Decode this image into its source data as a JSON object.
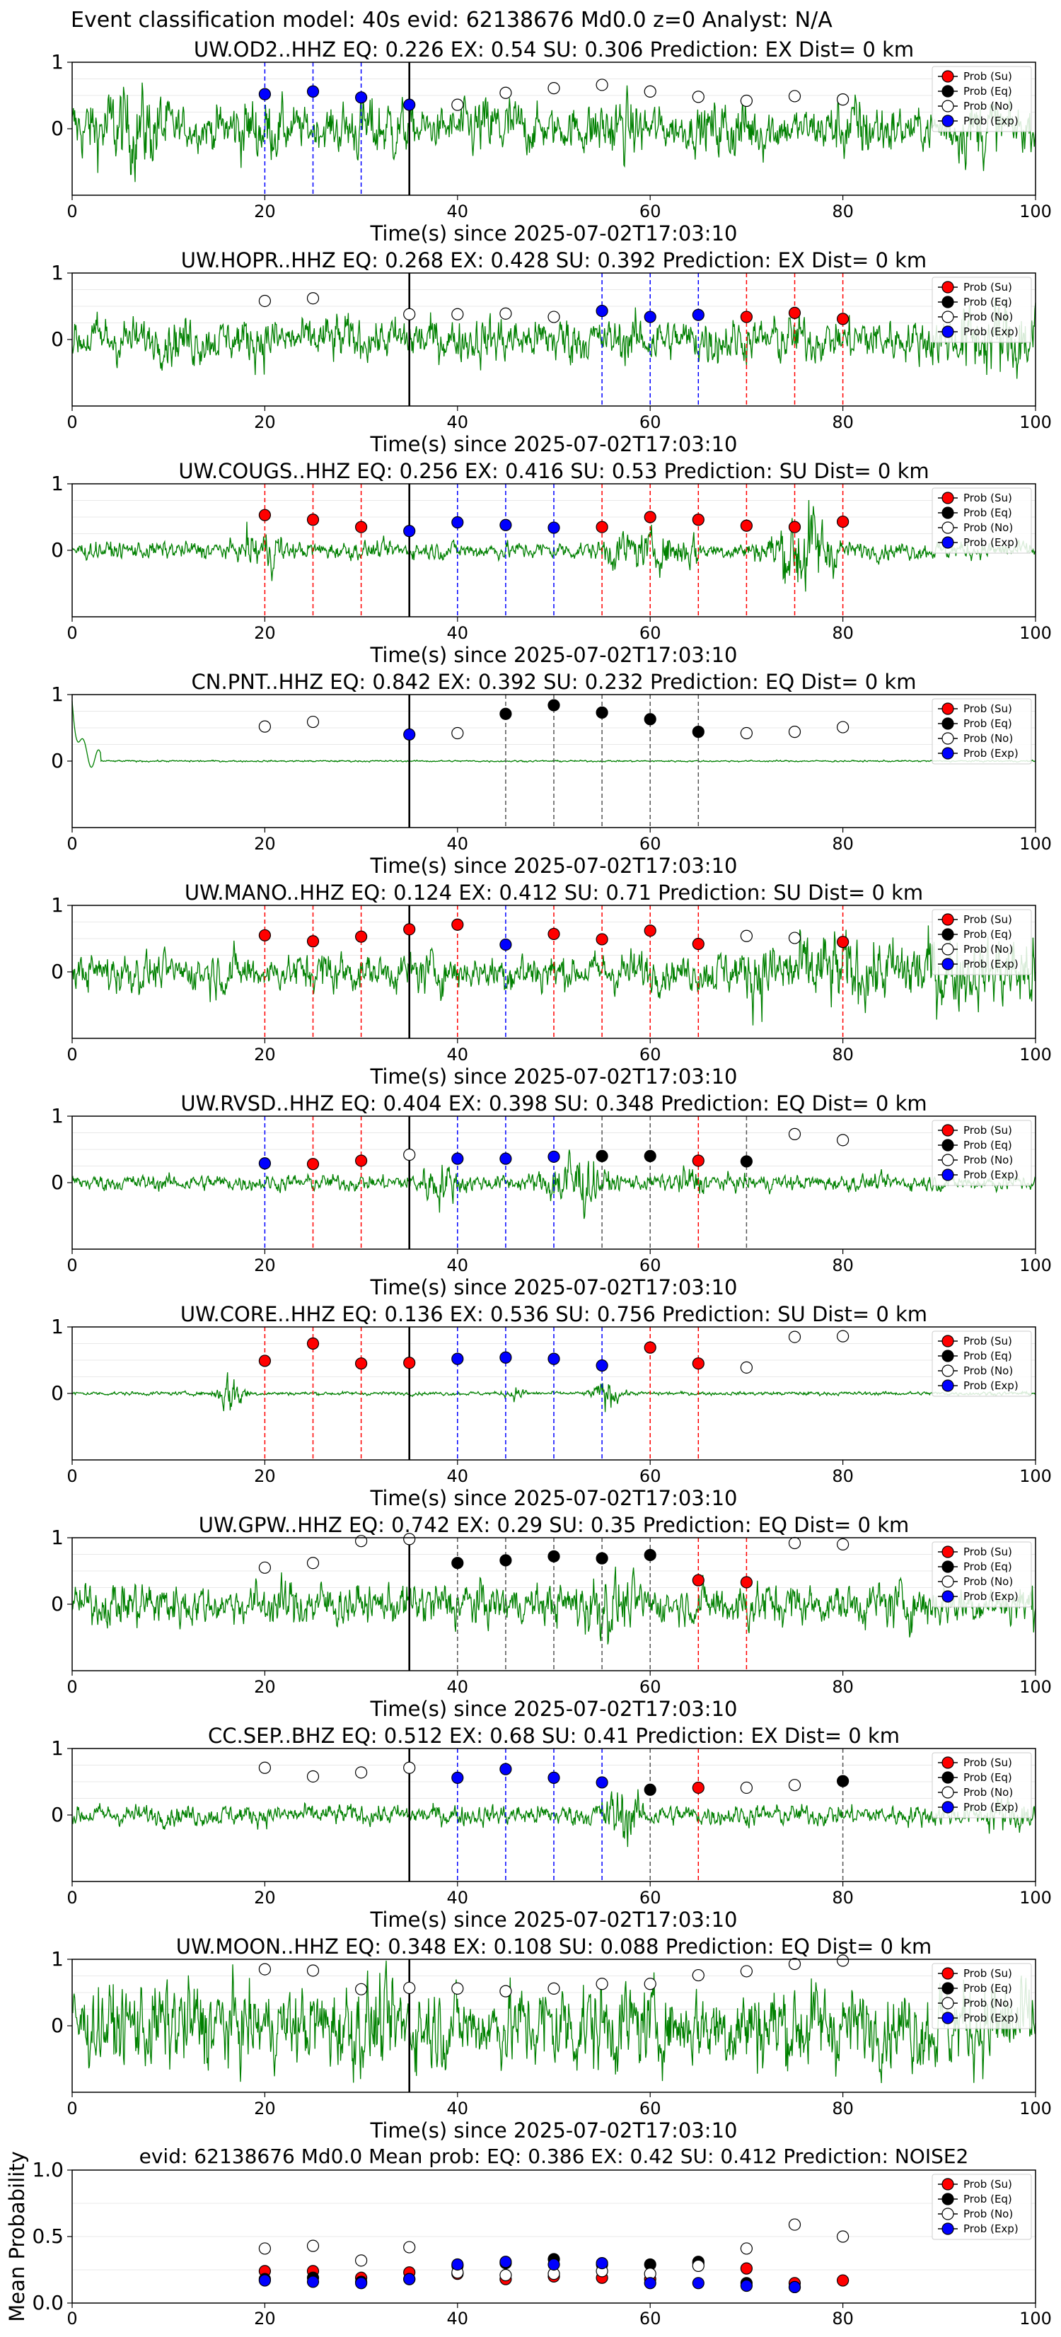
{
  "figure": {
    "title": "Event classification model: 40s evid: 62138676 Md0.0 z=0 Analyst: N/A",
    "xlabel": "Time(s) since 2025-07-02T17:03:10"
  },
  "legend_labels": [
    "Prob (Su)",
    "Prob (Eq)",
    "Prob (No)",
    "Prob (Exp)"
  ],
  "colors": {
    "su": "#ff0000",
    "eq": "#000000",
    "no": "#ffffff",
    "exp": "#0000ff",
    "waveform": "#008000"
  },
  "chart_data": [
    {
      "type": "line",
      "station": "UW.OD2..HHZ",
      "title": "UW.OD2..HHZ   EQ: 0.226  EX: 0.54  SU: 0.306   Prediction: EX    Dist= 0 km",
      "xlim": [
        0,
        100
      ],
      "ylim": [
        -1,
        1
      ],
      "amplitude": 0.75,
      "xticks": [
        "0",
        "20",
        "40",
        "60",
        "80",
        "100"
      ],
      "yticks": [
        "1",
        "0"
      ],
      "reference_line_x": 35,
      "points": [
        {
          "x": 20,
          "y": 0.52,
          "class": "exp"
        },
        {
          "x": 25,
          "y": 0.56,
          "class": "exp"
        },
        {
          "x": 30,
          "y": 0.47,
          "class": "exp"
        },
        {
          "x": 35,
          "y": 0.36,
          "class": "exp"
        },
        {
          "x": 40,
          "y": 0.36,
          "class": "no"
        },
        {
          "x": 45,
          "y": 0.54,
          "class": "no"
        },
        {
          "x": 50,
          "y": 0.61,
          "class": "no"
        },
        {
          "x": 55,
          "y": 0.66,
          "class": "no"
        },
        {
          "x": 60,
          "y": 0.56,
          "class": "no"
        },
        {
          "x": 65,
          "y": 0.48,
          "class": "no"
        },
        {
          "x": 70,
          "y": 0.42,
          "class": "no"
        },
        {
          "x": 75,
          "y": 0.49,
          "class": "no"
        },
        {
          "x": 80,
          "y": 0.44,
          "class": "no"
        }
      ]
    },
    {
      "type": "line",
      "station": "UW.HOPR..HHZ",
      "title": "UW.HOPR..HHZ   EQ: 0.268  EX: 0.428  SU: 0.392   Prediction: EX    Dist= 0 km",
      "xlim": [
        0,
        100
      ],
      "ylim": [
        -1,
        1
      ],
      "amplitude": 0.65,
      "xticks": [
        "0",
        "20",
        "40",
        "60",
        "80",
        "100"
      ],
      "yticks": [
        "1",
        "0"
      ],
      "reference_line_x": 35,
      "points": [
        {
          "x": 20,
          "y": 0.58,
          "class": "no"
        },
        {
          "x": 25,
          "y": 0.62,
          "class": "no"
        },
        {
          "x": 35,
          "y": 0.38,
          "class": "no"
        },
        {
          "x": 40,
          "y": 0.38,
          "class": "no"
        },
        {
          "x": 45,
          "y": 0.39,
          "class": "no"
        },
        {
          "x": 50,
          "y": 0.34,
          "class": "no"
        },
        {
          "x": 55,
          "y": 0.43,
          "class": "exp"
        },
        {
          "x": 60,
          "y": 0.34,
          "class": "exp"
        },
        {
          "x": 65,
          "y": 0.37,
          "class": "exp"
        },
        {
          "x": 70,
          "y": 0.34,
          "class": "su"
        },
        {
          "x": 75,
          "y": 0.4,
          "class": "su"
        },
        {
          "x": 80,
          "y": 0.31,
          "class": "su"
        }
      ]
    },
    {
      "type": "line",
      "station": "UW.COUGS..HHZ",
      "title": "UW.COUGS..HHZ   EQ: 0.256  EX: 0.416  SU: 0.53   Prediction: SU    Dist= 0 km",
      "xlim": [
        0,
        100
      ],
      "ylim": [
        -1,
        1
      ],
      "amplitude": 0.55,
      "xticks": [
        "0",
        "20",
        "40",
        "60",
        "80",
        "100"
      ],
      "yticks": [
        "1",
        "0"
      ],
      "reference_line_x": 35,
      "points": [
        {
          "x": 20,
          "y": 0.53,
          "class": "su"
        },
        {
          "x": 25,
          "y": 0.46,
          "class": "su"
        },
        {
          "x": 30,
          "y": 0.35,
          "class": "su"
        },
        {
          "x": 35,
          "y": 0.29,
          "class": "exp"
        },
        {
          "x": 40,
          "y": 0.42,
          "class": "exp"
        },
        {
          "x": 45,
          "y": 0.38,
          "class": "exp"
        },
        {
          "x": 50,
          "y": 0.34,
          "class": "exp"
        },
        {
          "x": 55,
          "y": 0.35,
          "class": "su"
        },
        {
          "x": 60,
          "y": 0.5,
          "class": "su"
        },
        {
          "x": 65,
          "y": 0.46,
          "class": "su"
        },
        {
          "x": 70,
          "y": 0.37,
          "class": "su"
        },
        {
          "x": 75,
          "y": 0.35,
          "class": "su"
        },
        {
          "x": 80,
          "y": 0.43,
          "class": "su"
        }
      ]
    },
    {
      "type": "line",
      "station": "CN.PNT..HHZ",
      "title": "CN.PNT..HHZ   EQ: 0.842  EX: 0.392  SU: 0.232   Prediction: EQ    Dist= 0 km",
      "xlim": [
        0,
        100
      ],
      "ylim": [
        -1,
        1
      ],
      "amplitude": 0.12,
      "xticks": [
        "0",
        "20",
        "40",
        "60",
        "80",
        "100"
      ],
      "yticks": [
        "1",
        "0"
      ],
      "reference_line_x": 35,
      "points": [
        {
          "x": 20,
          "y": 0.52,
          "class": "no"
        },
        {
          "x": 25,
          "y": 0.59,
          "class": "no"
        },
        {
          "x": 35,
          "y": 0.4,
          "class": "exp"
        },
        {
          "x": 40,
          "y": 0.42,
          "class": "no"
        },
        {
          "x": 45,
          "y": 0.71,
          "class": "eq"
        },
        {
          "x": 50,
          "y": 0.84,
          "class": "eq"
        },
        {
          "x": 55,
          "y": 0.73,
          "class": "eq"
        },
        {
          "x": 60,
          "y": 0.63,
          "class": "eq"
        },
        {
          "x": 65,
          "y": 0.44,
          "class": "eq"
        },
        {
          "x": 70,
          "y": 0.42,
          "class": "no"
        },
        {
          "x": 75,
          "y": 0.44,
          "class": "no"
        },
        {
          "x": 80,
          "y": 0.51,
          "class": "no"
        }
      ]
    },
    {
      "type": "line",
      "station": "UW.MANO..HHZ",
      "title": "UW.MANO..HHZ   EQ: 0.124  EX: 0.412  SU: 0.71   Prediction: SU    Dist= 0 km",
      "xlim": [
        0,
        100
      ],
      "ylim": [
        -1,
        1
      ],
      "amplitude": 0.7,
      "xticks": [
        "0",
        "20",
        "40",
        "60",
        "80",
        "100"
      ],
      "yticks": [
        "1",
        "0"
      ],
      "reference_line_x": 35,
      "points": [
        {
          "x": 20,
          "y": 0.55,
          "class": "su"
        },
        {
          "x": 25,
          "y": 0.46,
          "class": "su"
        },
        {
          "x": 30,
          "y": 0.53,
          "class": "su"
        },
        {
          "x": 35,
          "y": 0.64,
          "class": "su"
        },
        {
          "x": 40,
          "y": 0.71,
          "class": "su"
        },
        {
          "x": 45,
          "y": 0.41,
          "class": "exp"
        },
        {
          "x": 50,
          "y": 0.57,
          "class": "su"
        },
        {
          "x": 55,
          "y": 0.49,
          "class": "su"
        },
        {
          "x": 60,
          "y": 0.62,
          "class": "su"
        },
        {
          "x": 65,
          "y": 0.42,
          "class": "su"
        },
        {
          "x": 70,
          "y": 0.54,
          "class": "no"
        },
        {
          "x": 75,
          "y": 0.51,
          "class": "no"
        },
        {
          "x": 80,
          "y": 0.45,
          "class": "su"
        }
      ]
    },
    {
      "type": "line",
      "station": "UW.RVSD..HHZ",
      "title": "UW.RVSD..HHZ   EQ: 0.404  EX: 0.398  SU: 0.348   Prediction: EQ    Dist= 0 km",
      "xlim": [
        0,
        100
      ],
      "ylim": [
        -1,
        1
      ],
      "amplitude": 0.5,
      "xticks": [
        "0",
        "20",
        "40",
        "60",
        "80",
        "100"
      ],
      "yticks": [
        "1",
        "0"
      ],
      "reference_line_x": 35,
      "points": [
        {
          "x": 20,
          "y": 0.29,
          "class": "exp"
        },
        {
          "x": 25,
          "y": 0.28,
          "class": "su"
        },
        {
          "x": 30,
          "y": 0.33,
          "class": "su"
        },
        {
          "x": 35,
          "y": 0.42,
          "class": "no"
        },
        {
          "x": 40,
          "y": 0.36,
          "class": "exp"
        },
        {
          "x": 45,
          "y": 0.36,
          "class": "exp"
        },
        {
          "x": 50,
          "y": 0.39,
          "class": "exp"
        },
        {
          "x": 55,
          "y": 0.4,
          "class": "eq"
        },
        {
          "x": 60,
          "y": 0.4,
          "class": "eq"
        },
        {
          "x": 65,
          "y": 0.33,
          "class": "su"
        },
        {
          "x": 70,
          "y": 0.32,
          "class": "eq"
        },
        {
          "x": 75,
          "y": 0.73,
          "class": "no"
        },
        {
          "x": 80,
          "y": 0.64,
          "class": "no"
        }
      ]
    },
    {
      "type": "line",
      "station": "UW.CORE..HHZ",
      "title": "UW.CORE..HHZ   EQ: 0.136  EX: 0.536  SU: 0.756   Prediction: SU    Dist= 0 km",
      "xlim": [
        0,
        100
      ],
      "ylim": [
        -1,
        1
      ],
      "amplitude": 0.22,
      "xticks": [
        "0",
        "20",
        "40",
        "60",
        "80",
        "100"
      ],
      "yticks": [
        "1",
        "0"
      ],
      "reference_line_x": 35,
      "points": [
        {
          "x": 20,
          "y": 0.49,
          "class": "su"
        },
        {
          "x": 25,
          "y": 0.75,
          "class": "su"
        },
        {
          "x": 30,
          "y": 0.45,
          "class": "su"
        },
        {
          "x": 35,
          "y": 0.46,
          "class": "su"
        },
        {
          "x": 40,
          "y": 0.52,
          "class": "exp"
        },
        {
          "x": 45,
          "y": 0.54,
          "class": "exp"
        },
        {
          "x": 50,
          "y": 0.52,
          "class": "exp"
        },
        {
          "x": 55,
          "y": 0.42,
          "class": "exp"
        },
        {
          "x": 60,
          "y": 0.69,
          "class": "su"
        },
        {
          "x": 65,
          "y": 0.45,
          "class": "su"
        },
        {
          "x": 70,
          "y": 0.39,
          "class": "no"
        },
        {
          "x": 75,
          "y": 0.85,
          "class": "no"
        },
        {
          "x": 80,
          "y": 0.86,
          "class": "no"
        }
      ]
    },
    {
      "type": "line",
      "station": "UW.GPW..HHZ",
      "title": "UW.GPW..HHZ   EQ: 0.742  EX: 0.29  SU: 0.35   Prediction: EQ    Dist= 0 km",
      "xlim": [
        0,
        100
      ],
      "ylim": [
        -1,
        1
      ],
      "amplitude": 0.6,
      "xticks": [
        "0",
        "20",
        "40",
        "60",
        "80",
        "100"
      ],
      "yticks": [
        "1",
        "0"
      ],
      "reference_line_x": 35,
      "points": [
        {
          "x": 20,
          "y": 0.55,
          "class": "no"
        },
        {
          "x": 25,
          "y": 0.62,
          "class": "no"
        },
        {
          "x": 30,
          "y": 0.95,
          "class": "no"
        },
        {
          "x": 35,
          "y": 0.98,
          "class": "no"
        },
        {
          "x": 40,
          "y": 0.62,
          "class": "eq"
        },
        {
          "x": 45,
          "y": 0.66,
          "class": "eq"
        },
        {
          "x": 50,
          "y": 0.72,
          "class": "eq"
        },
        {
          "x": 55,
          "y": 0.69,
          "class": "eq"
        },
        {
          "x": 60,
          "y": 0.74,
          "class": "eq"
        },
        {
          "x": 65,
          "y": 0.36,
          "class": "su"
        },
        {
          "x": 70,
          "y": 0.33,
          "class": "su"
        },
        {
          "x": 75,
          "y": 0.92,
          "class": "no"
        },
        {
          "x": 80,
          "y": 0.9,
          "class": "no"
        }
      ]
    },
    {
      "type": "line",
      "station": "CC.SEP..BHZ",
      "title": "CC.SEP..BHZ   EQ: 0.512  EX: 0.68  SU: 0.41   Prediction: EX    Dist= 0 km",
      "xlim": [
        0,
        100
      ],
      "ylim": [
        -1,
        1
      ],
      "amplitude": 0.5,
      "xticks": [
        "0",
        "20",
        "40",
        "60",
        "80",
        "100"
      ],
      "yticks": [
        "1",
        "0"
      ],
      "reference_line_x": 35,
      "points": [
        {
          "x": 20,
          "y": 0.71,
          "class": "no"
        },
        {
          "x": 25,
          "y": 0.58,
          "class": "no"
        },
        {
          "x": 30,
          "y": 0.64,
          "class": "no"
        },
        {
          "x": 35,
          "y": 0.71,
          "class": "no"
        },
        {
          "x": 40,
          "y": 0.56,
          "class": "exp"
        },
        {
          "x": 45,
          "y": 0.69,
          "class": "exp"
        },
        {
          "x": 50,
          "y": 0.56,
          "class": "exp"
        },
        {
          "x": 55,
          "y": 0.49,
          "class": "exp"
        },
        {
          "x": 60,
          "y": 0.38,
          "class": "eq"
        },
        {
          "x": 65,
          "y": 0.41,
          "class": "su"
        },
        {
          "x": 70,
          "y": 0.41,
          "class": "no"
        },
        {
          "x": 75,
          "y": 0.45,
          "class": "no"
        },
        {
          "x": 80,
          "y": 0.51,
          "class": "eq"
        }
      ]
    },
    {
      "type": "line",
      "station": "UW.MOON..HHZ",
      "title": "UW.MOON..HHZ   EQ: 0.348  EX: 0.108  SU: 0.088   Prediction: EQ    Dist= 0 km",
      "xlim": [
        0,
        100
      ],
      "ylim": [
        -1,
        1
      ],
      "amplitude": 0.9,
      "xticks": [
        "0",
        "20",
        "40",
        "60",
        "80",
        "100"
      ],
      "yticks": [
        "1",
        "0"
      ],
      "reference_line_x": 35,
      "points": [
        {
          "x": 20,
          "y": 0.85,
          "class": "no"
        },
        {
          "x": 25,
          "y": 0.83,
          "class": "no"
        },
        {
          "x": 30,
          "y": 0.55,
          "class": "no"
        },
        {
          "x": 35,
          "y": 0.57,
          "class": "no"
        },
        {
          "x": 40,
          "y": 0.56,
          "class": "no"
        },
        {
          "x": 45,
          "y": 0.52,
          "class": "no"
        },
        {
          "x": 50,
          "y": 0.56,
          "class": "no"
        },
        {
          "x": 55,
          "y": 0.63,
          "class": "no"
        },
        {
          "x": 60,
          "y": 0.63,
          "class": "no"
        },
        {
          "x": 65,
          "y": 0.76,
          "class": "no"
        },
        {
          "x": 70,
          "y": 0.82,
          "class": "no"
        },
        {
          "x": 75,
          "y": 0.93,
          "class": "no"
        },
        {
          "x": 80,
          "y": 0.98,
          "class": "no"
        }
      ]
    },
    {
      "type": "scatter",
      "station": "mean",
      "title": "evid: 62138676  Md0.0   Mean prob:   EQ: 0.386  EX: 0.42  SU: 0.412   Prediction: NOISE2",
      "ylabel": "Mean Probability",
      "xlim": [
        0,
        100
      ],
      "ylim": [
        0,
        1
      ],
      "xticks": [
        "0",
        "20",
        "40",
        "60",
        "80",
        "100"
      ],
      "yticks": [
        "1.0",
        "0.5",
        "0.0"
      ],
      "x": [
        20,
        25,
        30,
        35,
        40,
        45,
        50,
        55,
        60,
        65,
        70,
        75,
        80
      ],
      "series": [
        {
          "name": "Prob (Su)",
          "class": "su",
          "values": [
            0.24,
            0.24,
            0.19,
            0.23,
            0.22,
            0.18,
            0.2,
            0.19,
            0.18,
            0.3,
            0.26,
            0.15,
            0.17
          ]
        },
        {
          "name": "Prob (Eq)",
          "class": "eq",
          "values": [
            0.18,
            0.19,
            0.16,
            0.18,
            0.28,
            0.3,
            0.33,
            0.29,
            0.29,
            0.31,
            0.15,
            0.12,
            null
          ]
        },
        {
          "name": "Prob (No)",
          "class": "no",
          "values": [
            0.41,
            0.43,
            0.32,
            0.42,
            0.23,
            0.21,
            0.22,
            0.24,
            0.22,
            0.28,
            0.41,
            0.59,
            0.5
          ]
        },
        {
          "name": "Prob (Exp)",
          "class": "exp",
          "values": [
            0.17,
            0.16,
            0.15,
            0.18,
            0.29,
            0.31,
            0.29,
            0.3,
            0.15,
            0.15,
            0.13,
            0.12,
            null
          ]
        }
      ]
    }
  ]
}
